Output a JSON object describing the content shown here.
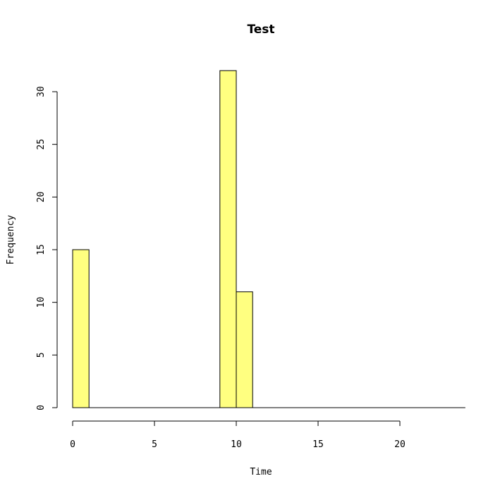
{
  "chart_data": {
    "type": "bar",
    "title": "Test",
    "xlabel": "Time",
    "ylabel": "Frequency",
    "bins": [
      {
        "start": 0,
        "end": 1,
        "count": 15
      },
      {
        "start": 9,
        "end": 10,
        "count": 32
      },
      {
        "start": 10,
        "end": 11,
        "count": 11
      }
    ],
    "xlim": [
      0,
      24
    ],
    "ylim": [
      0,
      32
    ],
    "x_ticks": [
      0,
      5,
      10,
      15,
      20
    ],
    "y_ticks": [
      0,
      5,
      10,
      15,
      20,
      25,
      30
    ],
    "bar_color": "#ffff80",
    "grid": false,
    "legend": "none"
  }
}
